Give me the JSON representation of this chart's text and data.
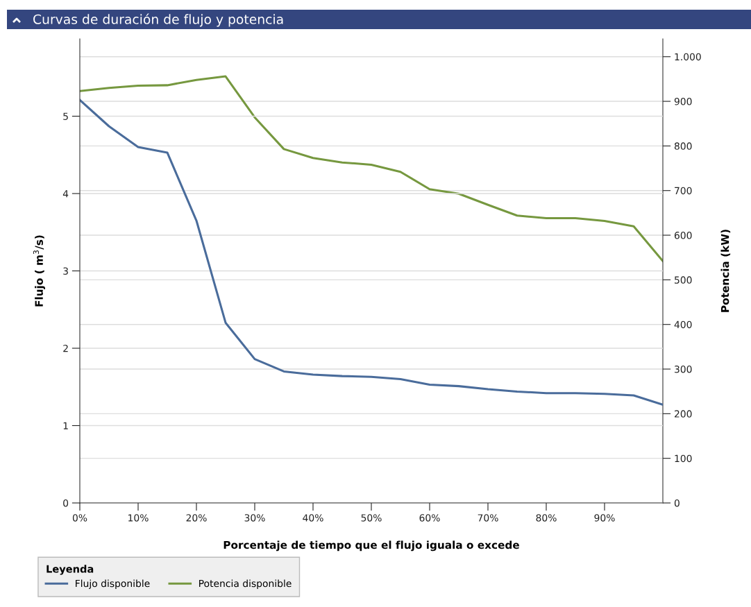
{
  "chart_data": {
    "type": "line",
    "title": "Curvas de duración de flujo y potencia",
    "xlabel": "Porcentaje de tiempo que el flujo iguala o excede",
    "ylabel": "Flujo ( m$^{3}$/s)",
    "y2label": "Potencia (kW)",
    "legend_title": "Leyenda",
    "x": [
      0,
      5,
      10,
      15,
      20,
      25,
      30,
      35,
      40,
      45,
      50,
      55,
      60,
      65,
      70,
      75,
      80,
      85,
      90,
      95,
      100
    ],
    "series": [
      {
        "name": "Flujo disponible",
        "color": "#4a6c9b",
        "values": [
          5.21,
          4.87,
          4.6,
          4.53,
          3.65,
          2.33,
          1.86,
          1.7,
          1.66,
          1.64,
          1.63,
          1.6,
          1.53,
          1.51,
          1.47,
          1.44,
          1.42,
          1.42,
          1.41,
          1.39,
          1.27
        ]
      },
      {
        "name": "Potencia disponible",
        "color": "#76983f",
        "axis": "y2",
        "values": [
          923,
          930,
          935,
          936,
          948,
          956,
          864,
          793,
          773,
          763,
          758,
          742,
          703,
          693,
          668,
          644,
          638,
          638,
          632,
          620,
          542
        ]
      }
    ],
    "xlim": [
      0,
      100
    ],
    "xticks": [
      {
        "value": 0,
        "label": "0%"
      },
      {
        "value": 10,
        "label": "10%"
      },
      {
        "value": 20,
        "label": "20%"
      },
      {
        "value": 30,
        "label": "30%"
      },
      {
        "value": 40,
        "label": "40%"
      },
      {
        "value": 50,
        "label": "50%"
      },
      {
        "value": 60,
        "label": "60%"
      },
      {
        "value": 70,
        "label": "70%"
      },
      {
        "value": 80,
        "label": "80%"
      },
      {
        "value": 90,
        "label": "90%"
      }
    ],
    "ylim": [
      0,
      6
    ],
    "yticks": [
      0,
      1,
      2,
      3,
      4,
      5
    ],
    "y2lim": [
      0,
      1040
    ],
    "y2ticks": [
      0,
      100,
      200,
      300,
      400,
      500,
      600,
      700,
      800,
      900,
      {
        "value": 1000,
        "label": "1.000"
      }
    ],
    "grid": "y",
    "legend": "bottom",
    "marker": "none",
    "line_style": "solid"
  }
}
